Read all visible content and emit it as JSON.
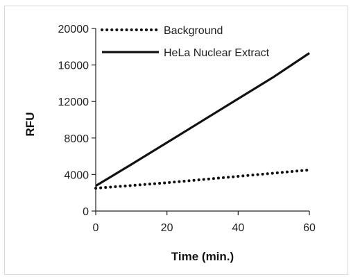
{
  "chart_data": {
    "type": "line",
    "xlabel": "Time (min.)",
    "ylabel": "RFU",
    "xlim": [
      0,
      60
    ],
    "ylim": [
      0,
      20000
    ],
    "x_ticks": [
      0,
      20,
      40,
      60
    ],
    "y_ticks": [
      0,
      4000,
      8000,
      12000,
      16000,
      20000
    ],
    "x_tick_labels": [
      "0",
      "20",
      "40",
      "60"
    ],
    "y_tick_labels": [
      "0",
      "4000",
      "8000",
      "12000",
      "16000",
      "20000"
    ],
    "grid": false,
    "legend_position": "top-left",
    "series": [
      {
        "name": "Background",
        "style": "dotted",
        "color": "#111111",
        "x": [
          0,
          10,
          20,
          30,
          40,
          50,
          60
        ],
        "y": [
          2500,
          2800,
          3100,
          3450,
          3800,
          4150,
          4500
        ]
      },
      {
        "name": "HeLa Nuclear Extract",
        "style": "solid",
        "color": "#111111",
        "x": [
          0,
          10,
          20,
          30,
          40,
          50,
          60
        ],
        "y": [
          2750,
          5100,
          7500,
          9900,
          12300,
          14700,
          17300
        ]
      }
    ]
  }
}
